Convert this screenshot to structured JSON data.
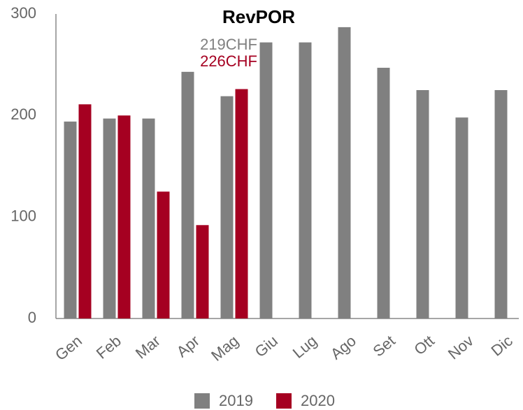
{
  "chart_data": {
    "type": "bar",
    "title": "RevPOR",
    "categories": [
      "Gen",
      "Feb",
      "Mar",
      "Apr",
      "Mag",
      "Giu",
      "Lug",
      "Ago",
      "Set",
      "Ott",
      "Nov",
      "Dic"
    ],
    "series": [
      {
        "name": "2019",
        "color": "#808080",
        "values": [
          194,
          197,
          197,
          243,
          219,
          272,
          272,
          287,
          247,
          225,
          198,
          225
        ]
      },
      {
        "name": "2020",
        "color": "#a50021",
        "values": [
          211,
          200,
          125,
          92,
          226,
          null,
          null,
          null,
          null,
          null,
          null,
          null
        ]
      }
    ],
    "annotations": [
      {
        "text": "219CHF",
        "color": "#808080"
      },
      {
        "text": "226CHF",
        "color": "#a50021"
      }
    ],
    "ylim": [
      0,
      300
    ],
    "yticks": [
      0,
      100,
      200,
      300
    ],
    "grid": false,
    "legend": "bottom"
  }
}
